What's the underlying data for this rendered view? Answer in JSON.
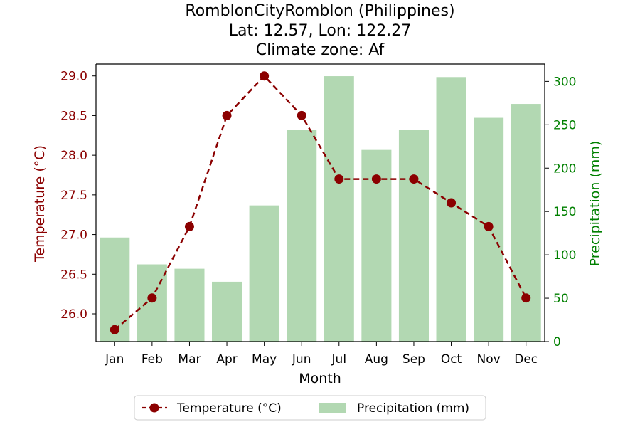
{
  "chart_data": {
    "type": "bar+line",
    "title_lines": [
      "RomblonCityRomblon (Philippines)",
      "Lat: 12.57, Lon: 122.27",
      "Climate zone: Af"
    ],
    "xlabel": "Month",
    "ylabel_left": "Temperature (°C)",
    "ylabel_right": "Precipitation (mm)",
    "categories": [
      "Jan",
      "Feb",
      "Mar",
      "Apr",
      "May",
      "Jun",
      "Jul",
      "Aug",
      "Sep",
      "Oct",
      "Nov",
      "Dec"
    ],
    "temperature": {
      "name": "Temperature (°C)",
      "values": [
        25.8,
        26.2,
        27.1,
        28.5,
        29.0,
        28.5,
        27.7,
        27.7,
        27.7,
        27.4,
        27.1,
        26.2
      ],
      "color": "#8b0000",
      "axis": "left",
      "ylim": [
        25.65,
        29.15
      ],
      "ticks": [
        "26.0",
        "26.5",
        "27.0",
        "27.5",
        "28.0",
        "28.5",
        "29.0"
      ]
    },
    "precipitation": {
      "name": "Precipitation (mm)",
      "values": [
        120,
        89,
        84,
        69,
        157,
        244,
        306,
        221,
        244,
        305,
        258,
        274
      ],
      "color": "#b2d8b2",
      "axis": "right",
      "ylim": [
        0,
        320
      ],
      "ticks": [
        "0",
        "50",
        "100",
        "150",
        "200",
        "250",
        "300"
      ]
    },
    "left_axis_color": "#8b0000",
    "right_axis_color": "#008000",
    "grid": false,
    "legend_position": "bottom-center"
  }
}
